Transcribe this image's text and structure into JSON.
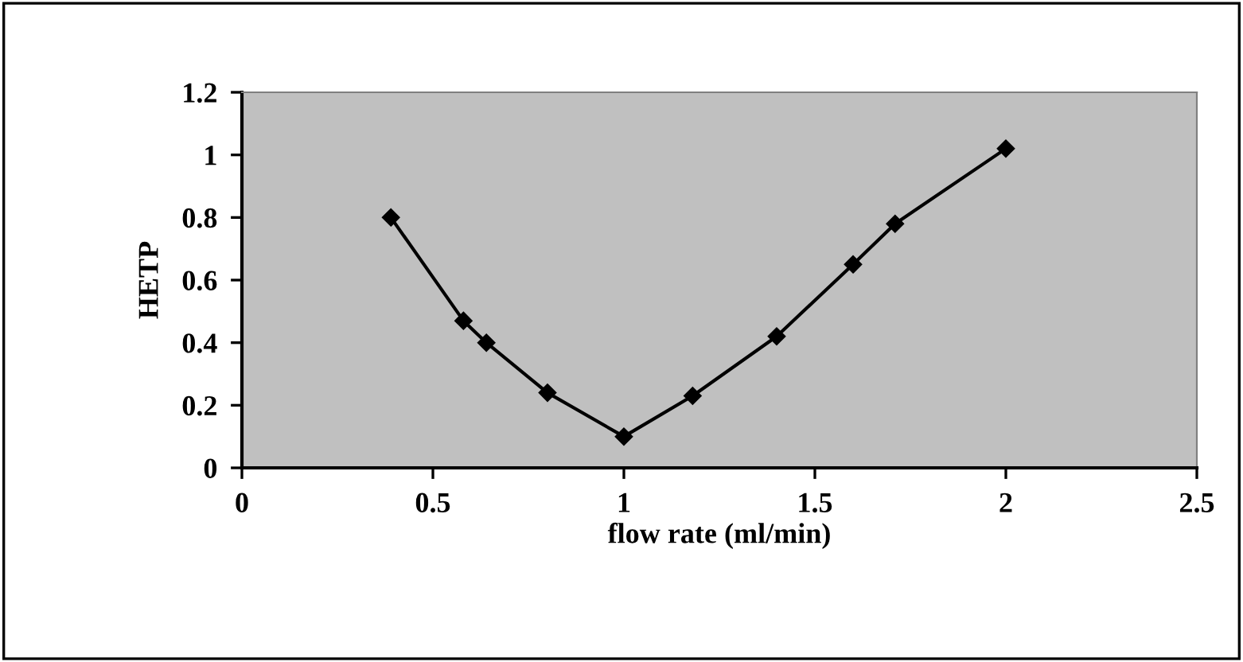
{
  "chart_data": {
    "type": "line",
    "xlabel": "flow rate (ml/min)",
    "ylabel": "HETP",
    "x": [
      0.39,
      0.58,
      0.64,
      0.8,
      1.0,
      1.18,
      1.4,
      1.6,
      1.71,
      2.0
    ],
    "series": [
      {
        "color": "#000000",
        "values": [
          0.8,
          0.47,
          0.4,
          0.24,
          0.1,
          0.23,
          0.42,
          0.65,
          0.78,
          1.02
        ]
      }
    ],
    "xlim": [
      0,
      2.5
    ],
    "xticks": [
      0,
      0.5,
      1,
      1.5,
      2,
      2.5
    ],
    "ylim": [
      0,
      1.2
    ],
    "yticks": [
      0,
      0.2,
      0.4,
      0.6,
      0.8,
      1,
      1.2
    ],
    "marker": "diamond",
    "line_style": "solid",
    "grid": false,
    "legend": false
  }
}
